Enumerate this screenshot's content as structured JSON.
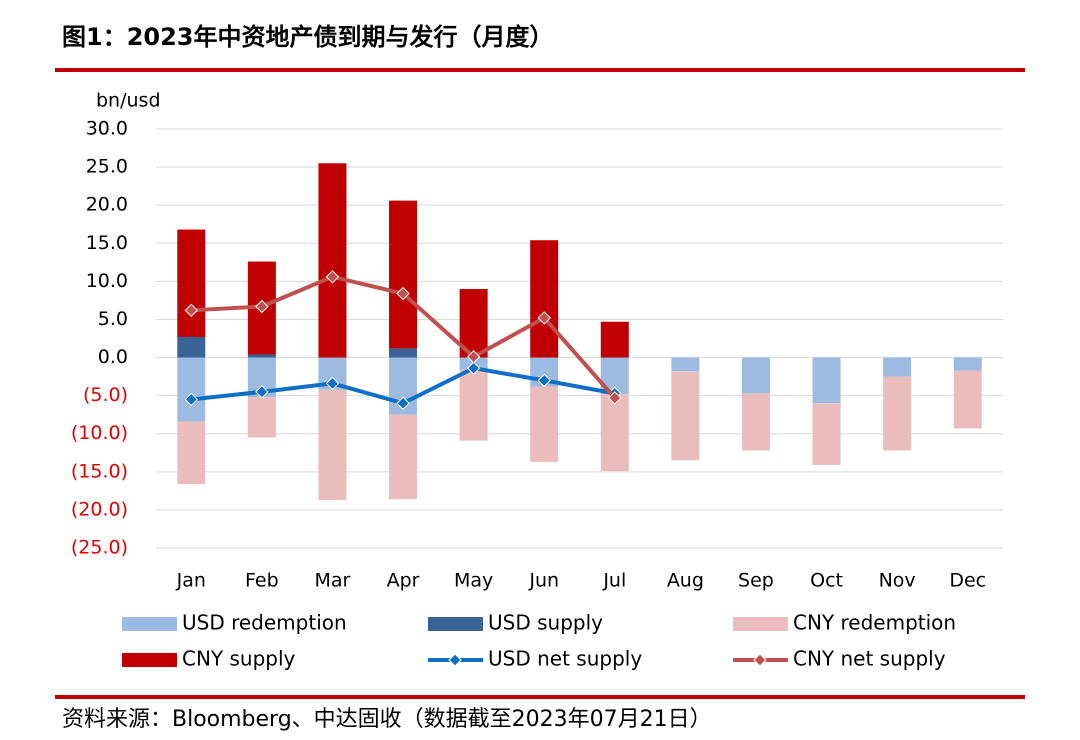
{
  "chart_data": {
    "type": "bar",
    "stacked": true,
    "title": "图1：2023年中资地产债到期与发行（月度）",
    "y_label": "bn/usd",
    "source": "资料来源：Bloomberg、中达固收（数据截至2023年07月21日）",
    "categories": [
      "Jan",
      "Feb",
      "Mar",
      "Apr",
      "May",
      "Jun",
      "Jul",
      "Aug",
      "Sep",
      "Oct",
      "Nov",
      "Dec"
    ],
    "ylim": [
      -25,
      30
    ],
    "yticks": [
      {
        "value": 30,
        "label": "30.0"
      },
      {
        "value": 25,
        "label": "25.0"
      },
      {
        "value": 20,
        "label": "20.0"
      },
      {
        "value": 15,
        "label": "15.0"
      },
      {
        "value": 10,
        "label": "10.0"
      },
      {
        "value": 5,
        "label": "5.0"
      },
      {
        "value": 0,
        "label": "0.0"
      },
      {
        "value": -5,
        "label": "(5.0)"
      },
      {
        "value": -10,
        "label": "(10.0)"
      },
      {
        "value": -15,
        "label": "(15.0)"
      },
      {
        "value": -20,
        "label": "(20.0)"
      },
      {
        "value": -25,
        "label": "(25.0)"
      }
    ],
    "negative_tick_color": "#e00000",
    "grid": true,
    "series": [
      {
        "name": "USD redemption",
        "type": "bar",
        "color": "#9dbbe0",
        "values": [
          -8.4,
          -5.2,
          -4.2,
          -7.5,
          -1.6,
          -3.8,
          -4.8,
          -1.8,
          -4.7,
          -6.0,
          -2.5,
          -1.7
        ]
      },
      {
        "name": "USD supply",
        "type": "bar",
        "color": "#3a6496",
        "values": [
          2.7,
          0.4,
          0,
          1.2,
          0,
          0,
          0,
          null,
          null,
          null,
          null,
          null
        ]
      },
      {
        "name": "CNY redemption",
        "type": "bar",
        "color": "#eabcbc",
        "values": [
          -8.2,
          -5.3,
          -14.5,
          -11.1,
          -9.3,
          -9.9,
          -10.1,
          -11.7,
          -7.5,
          -8.1,
          -9.7,
          -7.6
        ]
      },
      {
        "name": "CNY supply",
        "type": "bar",
        "color": "#c00000",
        "values": [
          14.1,
          12.2,
          25.5,
          19.4,
          9.0,
          15.4,
          4.7,
          null,
          null,
          null,
          null,
          null
        ]
      },
      {
        "name": "USD net supply",
        "type": "line",
        "color": "#0f6fc6",
        "values": [
          -5.5,
          -4.5,
          -3.4,
          -6.0,
          -1.4,
          -3.0,
          -4.7,
          null,
          null,
          null,
          null,
          null
        ]
      },
      {
        "name": "CNY net supply",
        "type": "line",
        "color": "#c0504d",
        "values": [
          6.2,
          6.7,
          10.6,
          8.4,
          0.1,
          5.2,
          -5.3,
          null,
          null,
          null,
          null,
          null
        ]
      }
    ]
  }
}
